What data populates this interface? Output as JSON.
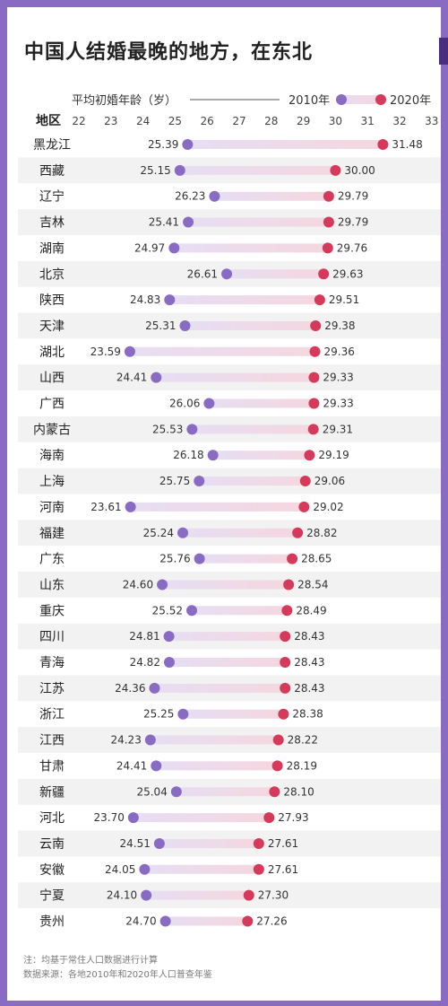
{
  "title": "中国人结婚最晚的地方，在东北",
  "colors": {
    "c2010": "#8a6bc4",
    "c2020": "#d63a5a",
    "bar_start": "#e6def3",
    "bar_end": "#f5d7df",
    "band": "#f2f2f2",
    "frame": "#8a6bc4"
  },
  "chart_data": {
    "type": "dumbbell",
    "title": "中国人结婚最晚的地方，在东北",
    "axis_title": "平均初婚年龄（岁）",
    "row_header": "地区",
    "xlim": [
      22,
      33
    ],
    "ticks": [
      22,
      23,
      24,
      25,
      26,
      27,
      28,
      29,
      30,
      31,
      32,
      33
    ],
    "legend": {
      "y2010": "2010年",
      "y2020": "2020年",
      "placement": "top-right"
    },
    "rows": [
      {
        "region": "黑龙江",
        "y2010": 25.39,
        "y2020": 31.48,
        "l2010": "25.39",
        "l2020": "31.48"
      },
      {
        "region": "西藏",
        "y2010": 25.15,
        "y2020": 30.0,
        "l2010": "25.15",
        "l2020": "30.00"
      },
      {
        "region": "辽宁",
        "y2010": 26.23,
        "y2020": 29.79,
        "l2010": "26.23",
        "l2020": "29.79"
      },
      {
        "region": "吉林",
        "y2010": 25.41,
        "y2020": 29.79,
        "l2010": "25.41",
        "l2020": "29.79"
      },
      {
        "region": "湖南",
        "y2010": 24.97,
        "y2020": 29.76,
        "l2010": "24.97",
        "l2020": "29.76"
      },
      {
        "region": "北京",
        "y2010": 26.61,
        "y2020": 29.63,
        "l2010": "26.61",
        "l2020": "29.63"
      },
      {
        "region": "陕西",
        "y2010": 24.83,
        "y2020": 29.51,
        "l2010": "24.83",
        "l2020": "29.51"
      },
      {
        "region": "天津",
        "y2010": 25.31,
        "y2020": 29.38,
        "l2010": "25.31",
        "l2020": "29.38"
      },
      {
        "region": "湖北",
        "y2010": 23.59,
        "y2020": 29.36,
        "l2010": "23.59",
        "l2020": "29.36"
      },
      {
        "region": "山西",
        "y2010": 24.41,
        "y2020": 29.33,
        "l2010": "24.41",
        "l2020": "29.33"
      },
      {
        "region": "广西",
        "y2010": 26.06,
        "y2020": 29.33,
        "l2010": "26.06",
        "l2020": "29.33"
      },
      {
        "region": "内蒙古",
        "y2010": 25.53,
        "y2020": 29.31,
        "l2010": "25.53",
        "l2020": "29.31"
      },
      {
        "region": "海南",
        "y2010": 26.18,
        "y2020": 29.19,
        "l2010": "26.18",
        "l2020": "29.19"
      },
      {
        "region": "上海",
        "y2010": 25.75,
        "y2020": 29.06,
        "l2010": "25.75",
        "l2020": "29.06"
      },
      {
        "region": "河南",
        "y2010": 23.61,
        "y2020": 29.02,
        "l2010": "23.61",
        "l2020": "29.02"
      },
      {
        "region": "福建",
        "y2010": 25.24,
        "y2020": 28.82,
        "l2010": "25.24",
        "l2020": "28.82"
      },
      {
        "region": "广东",
        "y2010": 25.76,
        "y2020": 28.65,
        "l2010": "25.76",
        "l2020": "28.65"
      },
      {
        "region": "山东",
        "y2010": 24.6,
        "y2020": 28.54,
        "l2010": "24.60",
        "l2020": "28.54"
      },
      {
        "region": "重庆",
        "y2010": 25.52,
        "y2020": 28.49,
        "l2010": "25.52",
        "l2020": "28.49"
      },
      {
        "region": "四川",
        "y2010": 24.81,
        "y2020": 28.43,
        "l2010": "24.81",
        "l2020": "28.43"
      },
      {
        "region": "青海",
        "y2010": 24.82,
        "y2020": 28.43,
        "l2010": "24.82",
        "l2020": "28.43"
      },
      {
        "region": "江苏",
        "y2010": 24.36,
        "y2020": 28.43,
        "l2010": "24.36",
        "l2020": "28.43"
      },
      {
        "region": "浙江",
        "y2010": 25.25,
        "y2020": 28.38,
        "l2010": "25.25",
        "l2020": "28.38"
      },
      {
        "region": "江西",
        "y2010": 24.23,
        "y2020": 28.22,
        "l2010": "24.23",
        "l2020": "28.22"
      },
      {
        "region": "甘肃",
        "y2010": 24.41,
        "y2020": 28.19,
        "l2010": "24.41",
        "l2020": "28.19"
      },
      {
        "region": "新疆",
        "y2010": 25.04,
        "y2020": 28.1,
        "l2010": "25.04",
        "l2020": "28.10"
      },
      {
        "region": "河北",
        "y2010": 23.7,
        "y2020": 27.93,
        "l2010": "23.70",
        "l2020": "27.93"
      },
      {
        "region": "云南",
        "y2010": 24.51,
        "y2020": 27.61,
        "l2010": "24.51",
        "l2020": "27.61"
      },
      {
        "region": "安徽",
        "y2010": 24.05,
        "y2020": 27.61,
        "l2010": "24.05",
        "l2020": "27.61"
      },
      {
        "region": "宁夏",
        "y2010": 24.1,
        "y2020": 27.3,
        "l2010": "24.10",
        "l2020": "27.30"
      },
      {
        "region": "贵州",
        "y2010": 24.7,
        "y2020": 27.26,
        "l2010": "24.70",
        "l2020": "27.26"
      }
    ]
  },
  "notes": {
    "note": "注：均基于常住人口数据进行计算",
    "source": "数据来源：各地2010年和2020年人口普查年鉴"
  }
}
